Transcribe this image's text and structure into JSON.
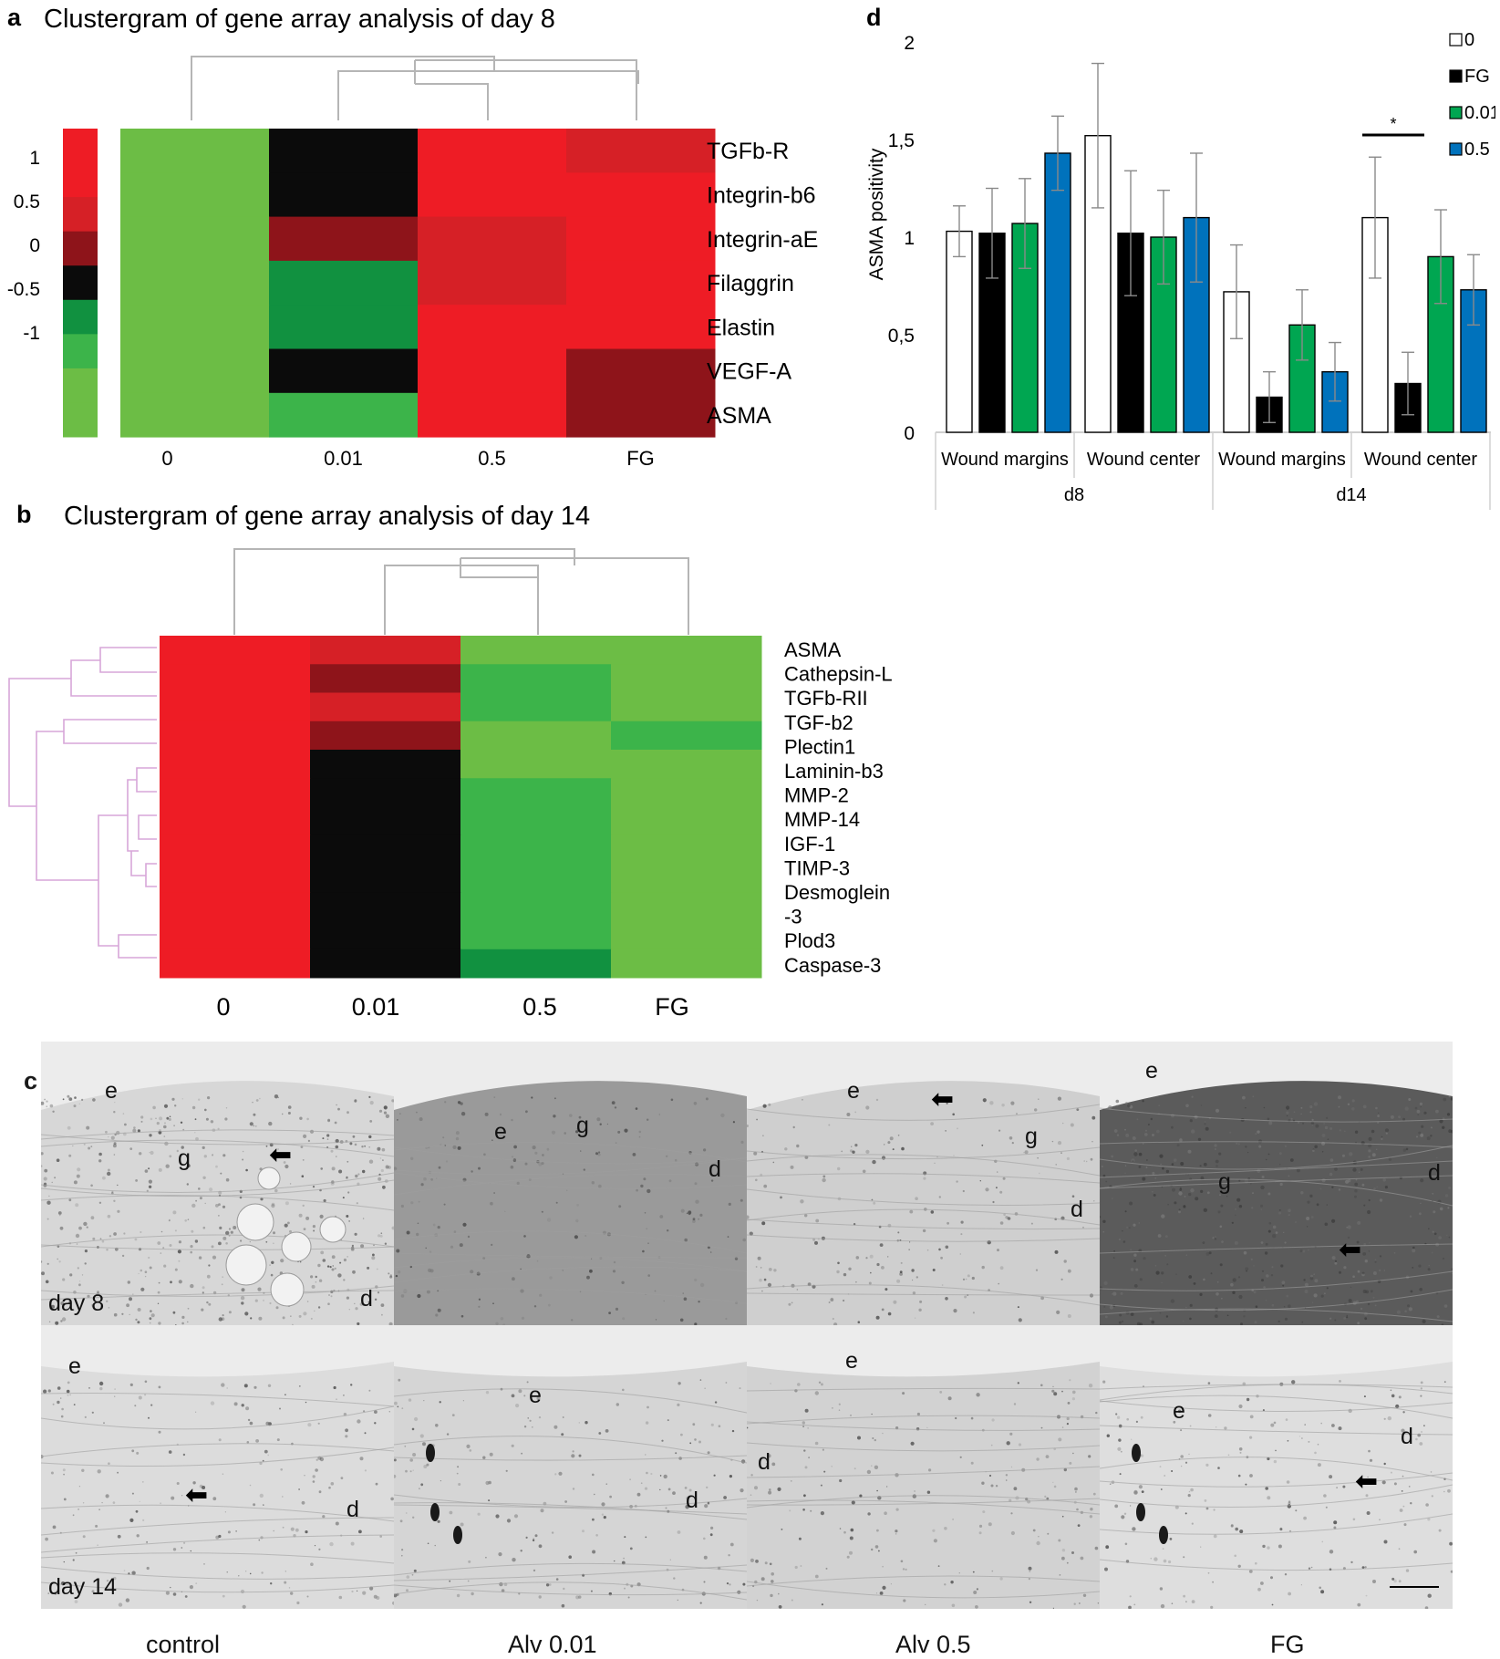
{
  "colors": {
    "red": "#ee1c25",
    "dark_red": "#8e141a",
    "mid_red": "#d62026",
    "black": "#0b0b0b",
    "green": "#6cbd45",
    "mid_green": "#3cb44a",
    "dark_green": "#119140",
    "bar_0": "#ffffff",
    "bar_FG": "#000000",
    "bar_001": "#00a651",
    "bar_05": "#0072bc"
  },
  "panel_a": {
    "letter": "a",
    "title": "Clustergram of gene array analysis of day 8",
    "scale_ticks": [
      "1",
      "0.5",
      "0",
      "-0.5",
      "-1"
    ],
    "chart_data": {
      "type": "heatmap",
      "title": "Clustergram of gene array analysis of day 8",
      "columns": [
        "0",
        "0.01",
        "0.5",
        "FG"
      ],
      "rows": [
        "TGFb-R",
        "Integrin-b6",
        "Integrin-aE",
        "Filaggrin",
        "Elastin",
        "VEGF-A",
        "ASMA"
      ],
      "color_scale_ticks": [
        1,
        0.5,
        0,
        -0.5,
        -1
      ],
      "cells": [
        [
          "green",
          "black",
          "red",
          "mid_red"
        ],
        [
          "green",
          "black",
          "red",
          "red"
        ],
        [
          "green",
          "dark_red",
          "mid_red",
          "red"
        ],
        [
          "green",
          "dark_green",
          "mid_red",
          "red"
        ],
        [
          "green",
          "dark_green",
          "red",
          "red"
        ],
        [
          "green",
          "black",
          "red",
          "dark_red"
        ],
        [
          "green",
          "mid_green",
          "red",
          "dark_red"
        ]
      ]
    }
  },
  "panel_b": {
    "letter": "b",
    "title": "Clustergram of gene array analysis of day 14",
    "chart_data": {
      "type": "heatmap",
      "title": "Clustergram of gene array analysis of day 14",
      "columns": [
        "0",
        "0.01",
        "0.5",
        "FG"
      ],
      "rows": [
        "ASMA",
        "Cathepsin-L",
        "TGFb-RII",
        "TGF-b2",
        "Plectin1",
        "Laminin-b3",
        "MMP-2",
        "MMP-14",
        "IGF-1",
        "TIMP-3",
        "Desmoglein\n-3",
        "Plod3",
        "Caspase-3"
      ],
      "cells": [
        [
          "red",
          "mid_red",
          "green",
          "green"
        ],
        [
          "red",
          "dark_red",
          "mid_green",
          "green"
        ],
        [
          "red",
          "mid_red",
          "mid_green",
          "green"
        ],
        [
          "red",
          "dark_red",
          "green",
          "mid_green"
        ],
        [
          "red",
          "black",
          "green",
          "green"
        ],
        [
          "red",
          "black",
          "mid_green",
          "green"
        ],
        [
          "red",
          "black",
          "mid_green",
          "green"
        ],
        [
          "red",
          "black",
          "mid_green",
          "green"
        ],
        [
          "red",
          "black",
          "mid_green",
          "green"
        ],
        [
          "red",
          "black",
          "mid_green",
          "green"
        ],
        [
          "red",
          "black",
          "mid_green",
          "green"
        ],
        [
          "red",
          "black",
          "dark_green",
          "green"
        ],
        [
          "red",
          "black",
          "dark_green",
          "green"
        ]
      ]
    }
  },
  "panel_c": {
    "letter": "c",
    "row_labels": [
      "day 8",
      "day 14"
    ],
    "column_labels": [
      "control",
      "Alv 0.01",
      "Alv 0.5",
      "FG"
    ],
    "tile_letters": {
      "r0c0": [
        "e",
        "g",
        "d"
      ],
      "r0c1": [
        "e",
        "g",
        "d"
      ],
      "r0c2": [
        "e",
        "g",
        "d"
      ],
      "r0c3": [
        "e",
        "g",
        "d"
      ],
      "r1c0": [
        "e",
        "d"
      ],
      "r1c1": [
        "e",
        "d"
      ],
      "r1c2": [
        "e",
        "d"
      ],
      "r1c3": [
        "e",
        "d"
      ]
    }
  },
  "panel_d": {
    "letter": "d",
    "chart_data": {
      "type": "bar",
      "ylabel": "ASMA positivity",
      "ylim": [
        0,
        2
      ],
      "yticks": [
        "0",
        "0,5",
        "1",
        "1,5",
        "2"
      ],
      "group_labels": [
        "d8",
        "d14"
      ],
      "categories": [
        "Wound margins",
        "Wound center",
        "Wound margins",
        "Wound center"
      ],
      "series": [
        {
          "name": "0",
          "values": [
            1.03,
            1.52,
            0.72,
            1.1
          ],
          "errors": [
            0.13,
            0.37,
            0.24,
            0.31
          ]
        },
        {
          "name": "FG",
          "values": [
            1.02,
            1.02,
            0.18,
            0.25
          ],
          "errors": [
            0.23,
            0.32,
            0.13,
            0.16
          ]
        },
        {
          "name": "0.01",
          "values": [
            1.07,
            1.0,
            0.55,
            0.9
          ],
          "errors": [
            0.23,
            0.24,
            0.18,
            0.24
          ]
        },
        {
          "name": "0.5",
          "values": [
            1.43,
            1.1,
            0.31,
            0.73
          ],
          "errors": [
            0.19,
            0.33,
            0.15,
            0.18
          ]
        }
      ],
      "significance": {
        "label": "*",
        "category_index": 3,
        "between": [
          "0",
          "FG"
        ]
      },
      "legend_position": "top-right",
      "grid": false
    }
  }
}
